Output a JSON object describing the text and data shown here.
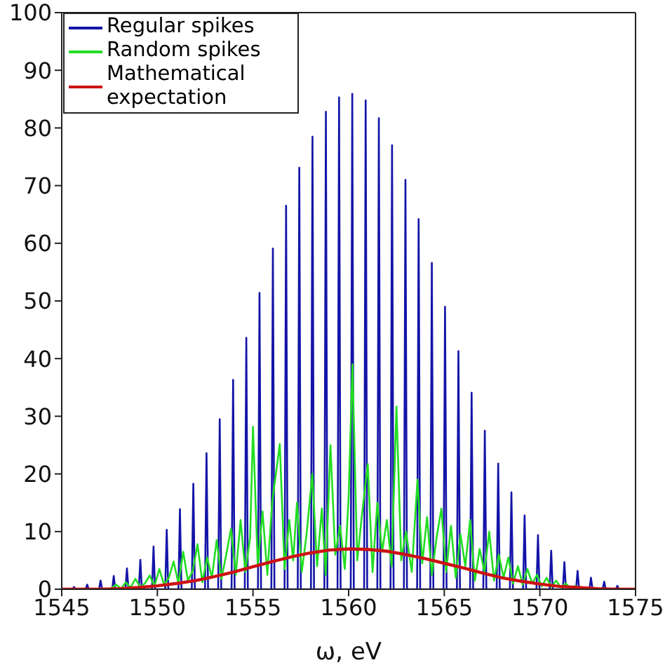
{
  "chart_data": {
    "type": "line",
    "xlabel": "ω, eV",
    "xlim": [
      1545,
      1575
    ],
    "ylim": [
      0,
      100
    ],
    "xticks": [
      1545,
      1550,
      1555,
      1560,
      1565,
      1570,
      1575
    ],
    "yticks": [
      0,
      10,
      20,
      30,
      40,
      50,
      60,
      70,
      80,
      90,
      100
    ],
    "legend": "top left",
    "series": [
      {
        "name": "Regular spikes",
        "color": "#1414a8",
        "x": [
          1545,
          1545.56,
          1545.64,
          1545.72,
          1546.25,
          1546.33,
          1546.41,
          1546.95,
          1547.03,
          1547.11,
          1547.64,
          1547.72,
          1547.8,
          1548.33,
          1548.41,
          1548.49,
          1549.03,
          1549.11,
          1549.19,
          1549.72,
          1549.8,
          1549.88,
          1550.41,
          1550.49,
          1550.57,
          1551.1,
          1551.18,
          1551.26,
          1551.8,
          1551.88,
          1551.96,
          1552.49,
          1552.57,
          1552.65,
          1553.18,
          1553.26,
          1553.34,
          1553.88,
          1553.96,
          1554.04,
          1554.57,
          1554.65,
          1554.73,
          1555.26,
          1555.34,
          1555.42,
          1555.96,
          1556.04,
          1556.12,
          1556.65,
          1556.73,
          1556.81,
          1557.34,
          1557.42,
          1557.5,
          1558.03,
          1558.11,
          1558.19,
          1558.73,
          1558.81,
          1558.89,
          1559.42,
          1559.5,
          1559.58,
          1560.11,
          1560.19,
          1560.27,
          1560.81,
          1560.89,
          1560.97,
          1561.5,
          1561.58,
          1561.66,
          1562.19,
          1562.27,
          1562.35,
          1562.89,
          1562.97,
          1563.05,
          1563.58,
          1563.66,
          1563.74,
          1564.27,
          1564.35,
          1564.43,
          1564.96,
          1565.04,
          1565.12,
          1565.66,
          1565.74,
          1565.82,
          1566.35,
          1566.43,
          1566.51,
          1567.04,
          1567.12,
          1567.2,
          1567.74,
          1567.82,
          1567.9,
          1568.43,
          1568.51,
          1568.59,
          1569.12,
          1569.2,
          1569.28,
          1569.82,
          1569.9,
          1569.98,
          1570.51,
          1570.59,
          1570.67,
          1571.2,
          1571.28,
          1571.36,
          1571.89,
          1571.97,
          1572.05,
          1572.59,
          1572.67,
          1572.75,
          1573.28,
          1573.36,
          1573.44,
          1573.97,
          1574.05,
          1574.13,
          1575
        ],
        "values": [
          0,
          0,
          0.4,
          0,
          0,
          0.8,
          0,
          0,
          1.5,
          0,
          0,
          2.3,
          0,
          0,
          3.6,
          0,
          0,
          5.1,
          0,
          0,
          7.4,
          0,
          0,
          10.3,
          0,
          0,
          13.9,
          0,
          0,
          18.3,
          0,
          0,
          23.6,
          0,
          0,
          29.5,
          0,
          0,
          36.3,
          0,
          0,
          43.6,
          0,
          0,
          51.4,
          0,
          0,
          59.1,
          0,
          0,
          66.5,
          0,
          0,
          73.1,
          0,
          0,
          78.5,
          0,
          0,
          82.8,
          0,
          0,
          85.3,
          0,
          0,
          85.9,
          0,
          0,
          84.8,
          0,
          0,
          81.7,
          0,
          0,
          77.0,
          0,
          0,
          71.0,
          0,
          0,
          64.2,
          0,
          0,
          56.6,
          0,
          0,
          49.0,
          0,
          0,
          41.3,
          0,
          0,
          34.1,
          0,
          0,
          27.5,
          0,
          0,
          21.8,
          0,
          0,
          16.8,
          0,
          0,
          12.8,
          0,
          0,
          9.4,
          0,
          0,
          6.7,
          0,
          0,
          4.7,
          0,
          0,
          3.2,
          0,
          0,
          2.0,
          0,
          0,
          1.3,
          0,
          0,
          0.6,
          0,
          0
        ]
      },
      {
        "name": "Random spikes",
        "color": "#22dd22",
        "x": [
          1547.6,
          1547.85,
          1548.1,
          1548.35,
          1548.6,
          1548.85,
          1549.1,
          1549.35,
          1549.6,
          1549.85,
          1550.1,
          1550.35,
          1550.6,
          1550.85,
          1551.1,
          1551.35,
          1551.6,
          1551.85,
          1552.1,
          1552.35,
          1552.6,
          1552.85,
          1553.1,
          1553.35,
          1553.6,
          1553.85,
          1554.1,
          1554.35,
          1554.6,
          1554.85,
          1555.0,
          1555.25,
          1555.5,
          1555.75,
          1556.0,
          1556.4,
          1556.65,
          1556.9,
          1557.1,
          1557.3,
          1557.55,
          1557.8,
          1558.1,
          1558.35,
          1558.6,
          1558.8,
          1559.05,
          1559.3,
          1559.55,
          1559.8,
          1560.0,
          1560.2,
          1560.45,
          1560.7,
          1561.0,
          1561.25,
          1561.5,
          1561.75,
          1562.0,
          1562.25,
          1562.5,
          1562.75,
          1563.0,
          1563.3,
          1563.6,
          1563.85,
          1564.1,
          1564.35,
          1564.6,
          1564.85,
          1565.1,
          1565.35,
          1565.6,
          1565.85,
          1566.1,
          1566.35,
          1566.6,
          1566.85,
          1567.1,
          1567.35,
          1567.6,
          1567.85,
          1568.1,
          1568.35,
          1568.6,
          1568.85,
          1569.1,
          1569.35,
          1569.6,
          1569.85,
          1570.1,
          1570.35,
          1570.6,
          1570.85,
          1571.1,
          1571.35,
          1571.6,
          1571.85,
          1572.1
        ],
        "values": [
          0.2,
          0.8,
          0.1,
          1.2,
          0.3,
          1.8,
          0.4,
          1.0,
          2.4,
          0.5,
          3.5,
          0.8,
          2.0,
          4.8,
          1.0,
          6.5,
          1.5,
          3.2,
          7.8,
          1.2,
          5.5,
          2.0,
          8.5,
          1.8,
          6.0,
          10.5,
          2.5,
          12.0,
          3.0,
          9.0,
          28.2,
          4.0,
          13.5,
          2.5,
          15.0,
          25.2,
          3.5,
          12.0,
          5.0,
          15.0,
          3.0,
          9.5,
          20.0,
          4.0,
          14.0,
          2.5,
          25.0,
          6.0,
          11.0,
          3.5,
          16.0,
          39.0,
          5.0,
          13.0,
          21.7,
          3.0,
          15.0,
          6.5,
          12.0,
          4.0,
          31.7,
          5.0,
          10.0,
          3.0,
          19.0,
          4.5,
          12.5,
          2.5,
          9.0,
          14.0,
          3.0,
          11.0,
          2.0,
          9.5,
          4.0,
          12.0,
          1.5,
          7.0,
          3.0,
          10.0,
          1.5,
          6.0,
          2.0,
          5.5,
          1.0,
          4.0,
          0.8,
          3.5,
          1.0,
          2.5,
          0.5,
          2.0,
          0.4,
          1.5,
          0.3,
          1.0,
          0.2,
          0.6,
          0.1
        ]
      },
      {
        "name": "Mathematical expectation",
        "color": "#cc1111",
        "x": [
          1545,
          1546,
          1547,
          1548,
          1549,
          1550,
          1551,
          1552,
          1553,
          1554,
          1555,
          1556,
          1557,
          1558,
          1559,
          1560,
          1561,
          1562,
          1563,
          1564,
          1565,
          1566,
          1567,
          1568,
          1569,
          1570,
          1571,
          1572,
          1573,
          1574,
          1575
        ],
        "values": [
          0,
          0,
          0,
          0.1,
          0.3,
          0.6,
          1.0,
          1.5,
          2.2,
          3.0,
          3.9,
          4.8,
          5.6,
          6.3,
          6.8,
          7.0,
          6.9,
          6.6,
          6.0,
          5.3,
          4.5,
          3.7,
          2.8,
          2.0,
          1.4,
          0.9,
          0.5,
          0.3,
          0.1,
          0,
          0
        ]
      }
    ]
  }
}
